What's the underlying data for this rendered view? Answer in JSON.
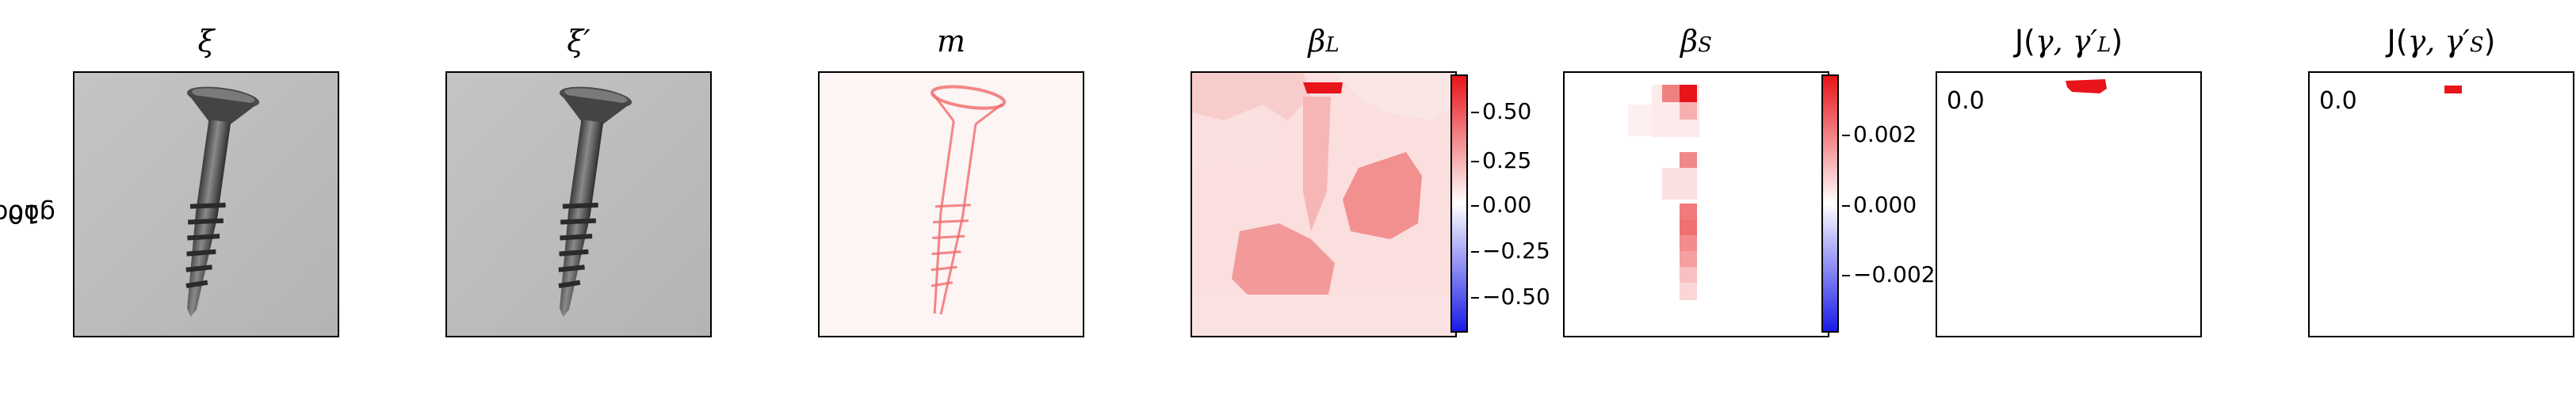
{
  "row_label": {
    "line1": "good",
    "line2": "10"
  },
  "panels": {
    "xi": {
      "title": "ξ"
    },
    "xi_prime": {
      "title": "ξ′"
    },
    "m": {
      "title": "m"
    },
    "beta_l": {
      "title_main": "β",
      "title_sub": "L"
    },
    "beta_s": {
      "title_main": "β",
      "title_sub": "S"
    },
    "j_l": {
      "title_prefix": "J(",
      "title_args": "γ, γ′",
      "title_sub": "L",
      "title_suffix": ")",
      "value": "0.0"
    },
    "j_s": {
      "title_prefix": "J(",
      "title_args": "γ, γ′",
      "title_sub": "S",
      "title_suffix": ")",
      "value": "0.0"
    }
  },
  "colorbars": {
    "beta_l": {
      "ticks": [
        "0.50",
        "0.25",
        "0.00",
        "−0.25",
        "−0.50"
      ],
      "range": [
        -0.65,
        0.65
      ]
    },
    "beta_s": {
      "ticks": [
        "0.002",
        "0.000",
        "−0.002"
      ],
      "range": [
        -0.0037,
        0.0037
      ]
    }
  },
  "colors": {
    "positive": "#e8141a",
    "negative": "#1a1ae8",
    "neutral": "#ffffff",
    "photo_bg": "#bcbcbc"
  },
  "icons": {
    "screw_image": "screw-photo"
  }
}
